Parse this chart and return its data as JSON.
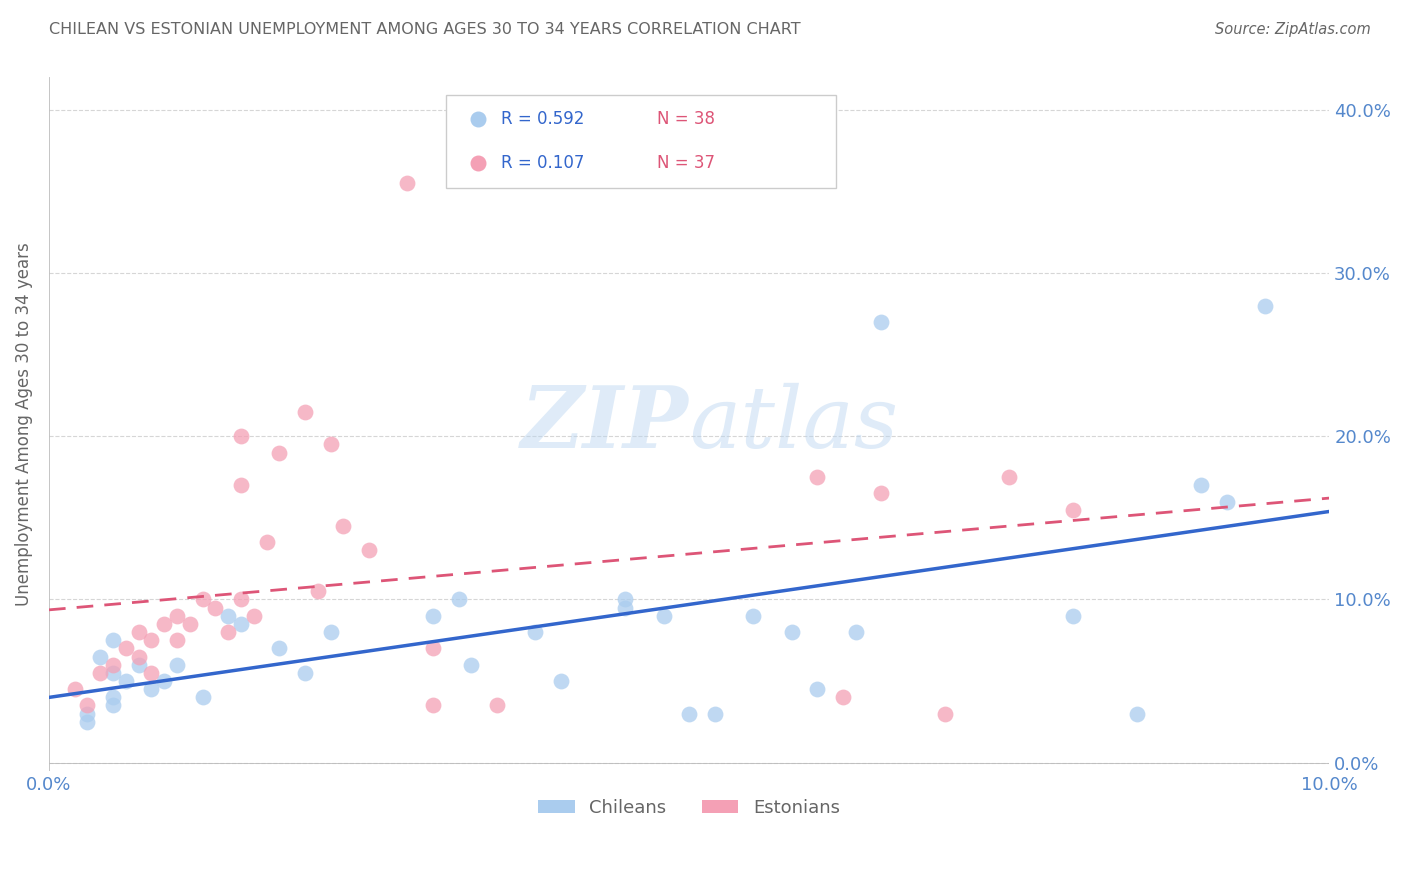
{
  "title": "CHILEAN VS ESTONIAN UNEMPLOYMENT AMONG AGES 30 TO 34 YEARS CORRELATION CHART",
  "source": "Source: ZipAtlas.com",
  "ylabel": "Unemployment Among Ages 30 to 34 years",
  "xlim": [
    0.0,
    0.1
  ],
  "ylim": [
    -0.005,
    0.42
  ],
  "yticks": [
    0.0,
    0.1,
    0.2,
    0.3,
    0.4
  ],
  "xticks": [
    0.0,
    0.1
  ],
  "chilean_R": 0.592,
  "chilean_N": 38,
  "estonian_R": 0.107,
  "estonian_N": 37,
  "chilean_color": "#aaccee",
  "chilean_line_color": "#3366cc",
  "estonian_color": "#f4a0b5",
  "estonian_line_color": "#dd5577",
  "watermark_zip": "ZIP",
  "watermark_atlas": "atlas",
  "background_color": "#ffffff",
  "grid_color": "#cccccc",
  "axis_label_color": "#5588cc",
  "title_color": "#666666",
  "legend_r_color": "#3366cc",
  "legend_n_color": "#dd5577",
  "chilean_x": [
    0.008,
    0.005,
    0.005,
    0.003,
    0.004,
    0.005,
    0.006,
    0.003,
    0.007,
    0.005,
    0.01,
    0.009,
    0.012,
    0.015,
    0.014,
    0.018,
    0.02,
    0.022,
    0.03,
    0.032,
    0.033,
    0.038,
    0.04,
    0.045,
    0.045,
    0.048,
    0.05,
    0.052,
    0.055,
    0.058,
    0.06,
    0.063,
    0.065,
    0.08,
    0.085,
    0.09,
    0.092,
    0.095
  ],
  "chilean_y": [
    0.045,
    0.035,
    0.055,
    0.03,
    0.065,
    0.04,
    0.05,
    0.025,
    0.06,
    0.075,
    0.06,
    0.05,
    0.04,
    0.085,
    0.09,
    0.07,
    0.055,
    0.08,
    0.09,
    0.1,
    0.06,
    0.08,
    0.05,
    0.1,
    0.095,
    0.09,
    0.03,
    0.03,
    0.09,
    0.08,
    0.045,
    0.08,
    0.27,
    0.09,
    0.03,
    0.17,
    0.16,
    0.28
  ],
  "estonian_x": [
    0.002,
    0.003,
    0.004,
    0.005,
    0.006,
    0.007,
    0.007,
    0.008,
    0.008,
    0.009,
    0.01,
    0.01,
    0.011,
    0.012,
    0.013,
    0.014,
    0.015,
    0.016,
    0.018,
    0.02,
    0.022,
    0.025,
    0.028,
    0.03,
    0.03,
    0.015,
    0.015,
    0.017,
    0.021,
    0.023,
    0.035,
    0.06,
    0.065,
    0.062,
    0.07,
    0.075,
    0.08
  ],
  "estonian_y": [
    0.045,
    0.035,
    0.055,
    0.06,
    0.07,
    0.065,
    0.08,
    0.055,
    0.075,
    0.085,
    0.075,
    0.09,
    0.085,
    0.1,
    0.095,
    0.08,
    0.1,
    0.09,
    0.19,
    0.215,
    0.195,
    0.13,
    0.355,
    0.035,
    0.07,
    0.2,
    0.17,
    0.135,
    0.105,
    0.145,
    0.035,
    0.175,
    0.165,
    0.04,
    0.03,
    0.175,
    0.155
  ]
}
